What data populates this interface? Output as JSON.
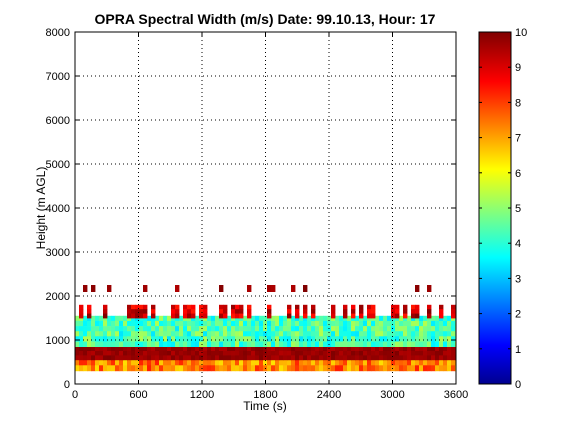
{
  "chart_data": {
    "type": "heatmap",
    "title": "OPRA Spectral Width (m/s)  Date: 99.10.13, Hour: 17",
    "xlabel": "Time (s)",
    "ylabel": "Height (m AGL)",
    "xlim": [
      0,
      3600
    ],
    "ylim": [
      0,
      8000
    ],
    "x_ticks": [
      0,
      600,
      1200,
      1800,
      2400,
      3000,
      3600
    ],
    "y_ticks": [
      0,
      1000,
      2000,
      3000,
      4000,
      5000,
      6000,
      7000,
      8000
    ],
    "grid": true,
    "colormap": "jet",
    "colorbar": {
      "range": [
        0,
        10
      ],
      "ticks": [
        0,
        1,
        2,
        3,
        4,
        5,
        6,
        7,
        8,
        9,
        10
      ]
    },
    "bands": [
      {
        "height_range": [
          300,
          550
        ],
        "spectral_width_range": [
          6.5,
          8.5
        ],
        "coverage": "continuous"
      },
      {
        "height_range": [
          550,
          850
        ],
        "spectral_width_range": [
          9.5,
          10
        ],
        "coverage": "continuous"
      },
      {
        "height_range": [
          850,
          1550
        ],
        "spectral_width_range": [
          3.5,
          5.5
        ],
        "coverage": "continuous"
      },
      {
        "height_range": [
          1500,
          1800
        ],
        "spectral_width_range": [
          8.5,
          10
        ],
        "coverage": "intermittent"
      },
      {
        "height_range": [
          2100,
          2250
        ],
        "spectral_width_range": [
          9.5,
          10
        ],
        "coverage": "sparse"
      }
    ]
  }
}
